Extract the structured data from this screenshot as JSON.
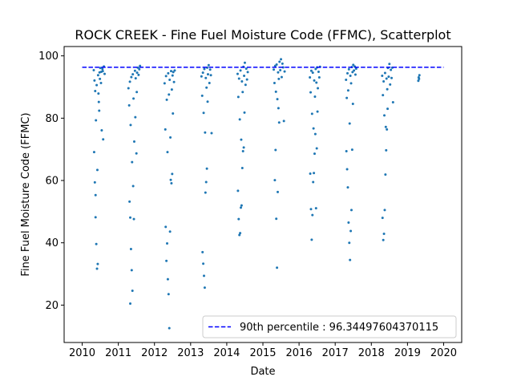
{
  "chart_data": {
    "type": "scatter",
    "title": "ROCK CREEK - Fine Fuel Moisture Code (FFMC), Scatterplot",
    "xlabel": "Date",
    "ylabel": "Fine Fuel Moisture Code (FFMC)",
    "xlim": [
      2009.5,
      2020.5
    ],
    "ylim": [
      8,
      103
    ],
    "x_ticks": [
      2010,
      2011,
      2012,
      2013,
      2014,
      2015,
      2016,
      2017,
      2018,
      2019,
      2020
    ],
    "x_tick_labels": [
      "2010",
      "2011",
      "2012",
      "2013",
      "2014",
      "2015",
      "2016",
      "2017",
      "2018",
      "2019",
      "2020"
    ],
    "y_ticks": [
      20,
      40,
      60,
      80,
      100
    ],
    "y_tick_labels": [
      "20",
      "40",
      "60",
      "80",
      "100"
    ],
    "grid": false,
    "legend_position": "lower-right",
    "series": [
      {
        "kind": "scatter",
        "color": "#1f77b4",
        "points": [
          [
            2010.32,
            95.4
          ],
          [
            2010.34,
            92.1
          ],
          [
            2010.36,
            88.7
          ],
          [
            2010.38,
            79.3
          ],
          [
            2010.4,
            90.6
          ],
          [
            2010.42,
            63.4
          ],
          [
            2010.44,
            93.8
          ],
          [
            2010.46,
            85.2
          ],
          [
            2010.48,
            94.7
          ],
          [
            2010.5,
            96.1
          ],
          [
            2010.52,
            91.3
          ],
          [
            2010.54,
            76.1
          ],
          [
            2010.56,
            95.8
          ],
          [
            2010.58,
            73.2
          ],
          [
            2010.6,
            96.6
          ],
          [
            2010.62,
            94.2
          ],
          [
            2010.33,
            69.1
          ],
          [
            2010.35,
            59.4
          ],
          [
            2010.37,
            48.2
          ],
          [
            2010.39,
            39.6
          ],
          [
            2010.41,
            31.7
          ],
          [
            2010.43,
            33.2
          ],
          [
            2010.37,
            55.3
          ],
          [
            2010.45,
            87.9
          ],
          [
            2010.47,
            82.4
          ],
          [
            2010.49,
            92.6
          ],
          [
            2010.53,
            94.9
          ],
          [
            2010.57,
            95.1
          ],
          [
            2011.28,
            89.6
          ],
          [
            2011.3,
            84.1
          ],
          [
            2011.32,
            91.7
          ],
          [
            2011.34,
            77.8
          ],
          [
            2011.36,
            93.2
          ],
          [
            2011.38,
            65.9
          ],
          [
            2011.4,
            94.1
          ],
          [
            2011.42,
            86.3
          ],
          [
            2011.44,
            72.5
          ],
          [
            2011.46,
            95.2
          ],
          [
            2011.48,
            92.8
          ],
          [
            2011.5,
            68.7
          ],
          [
            2011.52,
            94.6
          ],
          [
            2011.54,
            96.2
          ],
          [
            2011.56,
            93.9
          ],
          [
            2011.58,
            95.7
          ],
          [
            2011.6,
            96.8
          ],
          [
            2011.31,
            53.2
          ],
          [
            2011.33,
            48.1
          ],
          [
            2011.35,
            38.0
          ],
          [
            2011.37,
            31.2
          ],
          [
            2011.39,
            24.6
          ],
          [
            2011.33,
            20.5
          ],
          [
            2011.43,
            47.6
          ],
          [
            2011.41,
            58.2
          ],
          [
            2011.47,
            80.3
          ],
          [
            2011.51,
            88.4
          ],
          [
            2012.28,
            91.2
          ],
          [
            2012.3,
            76.4
          ],
          [
            2012.32,
            93.5
          ],
          [
            2012.34,
            85.9
          ],
          [
            2012.36,
            69.1
          ],
          [
            2012.38,
            94.4
          ],
          [
            2012.4,
            87.6
          ],
          [
            2012.42,
            92.3
          ],
          [
            2012.44,
            73.8
          ],
          [
            2012.46,
            95.1
          ],
          [
            2012.48,
            89.2
          ],
          [
            2012.5,
            93.7
          ],
          [
            2012.52,
            94.8
          ],
          [
            2012.54,
            91.6
          ],
          [
            2012.56,
            95.3
          ],
          [
            2012.31,
            45.1
          ],
          [
            2012.33,
            34.2
          ],
          [
            2012.35,
            39.8
          ],
          [
            2012.37,
            28.3
          ],
          [
            2012.39,
            23.5
          ],
          [
            2012.41,
            12.6
          ],
          [
            2012.43,
            43.6
          ],
          [
            2012.45,
            60.2
          ],
          [
            2012.47,
            59.1
          ],
          [
            2012.49,
            62.1
          ],
          [
            2012.51,
            81.5
          ],
          [
            2013.3,
            93.4
          ],
          [
            2013.32,
            87.2
          ],
          [
            2013.34,
            94.6
          ],
          [
            2013.36,
            81.7
          ],
          [
            2013.38,
            95.8
          ],
          [
            2013.4,
            75.4
          ],
          [
            2013.42,
            92.9
          ],
          [
            2013.44,
            89.8
          ],
          [
            2013.46,
            96.2
          ],
          [
            2013.48,
            94.1
          ],
          [
            2013.5,
            97.0
          ],
          [
            2013.52,
            91.3
          ],
          [
            2013.54,
            95.6
          ],
          [
            2013.56,
            93.8
          ],
          [
            2013.58,
            75.2
          ],
          [
            2013.33,
            37.0
          ],
          [
            2013.35,
            33.3
          ],
          [
            2013.37,
            29.4
          ],
          [
            2013.39,
            25.6
          ],
          [
            2013.41,
            56.1
          ],
          [
            2013.43,
            59.5
          ],
          [
            2013.45,
            63.8
          ],
          [
            2013.47,
            85.3
          ],
          [
            2014.3,
            94.2
          ],
          [
            2014.32,
            86.8
          ],
          [
            2014.34,
            92.7
          ],
          [
            2014.36,
            79.6
          ],
          [
            2014.38,
            95.3
          ],
          [
            2014.4,
            73.1
          ],
          [
            2014.42,
            91.8
          ],
          [
            2014.44,
            88.4
          ],
          [
            2014.46,
            96.5
          ],
          [
            2014.48,
            93.6
          ],
          [
            2014.5,
            97.8
          ],
          [
            2014.52,
            90.7
          ],
          [
            2014.54,
            95.9
          ],
          [
            2014.56,
            92.4
          ],
          [
            2014.58,
            94.8
          ],
          [
            2014.31,
            56.7
          ],
          [
            2014.33,
            47.6
          ],
          [
            2014.35,
            42.5
          ],
          [
            2014.37,
            43.1
          ],
          [
            2014.39,
            51.3
          ],
          [
            2014.41,
            52.0
          ],
          [
            2014.43,
            64.0
          ],
          [
            2014.45,
            69.4
          ],
          [
            2014.47,
            70.6
          ],
          [
            2014.49,
            81.8
          ],
          [
            2015.3,
            95.6
          ],
          [
            2015.32,
            91.3
          ],
          [
            2015.34,
            96.8
          ],
          [
            2015.36,
            88.5
          ],
          [
            2015.38,
            97.2
          ],
          [
            2015.4,
            86.1
          ],
          [
            2015.42,
            94.7
          ],
          [
            2015.44,
            92.6
          ],
          [
            2015.46,
            98.1
          ],
          [
            2015.48,
            95.4
          ],
          [
            2015.5,
            98.9
          ],
          [
            2015.52,
            93.2
          ],
          [
            2015.54,
            97.5
          ],
          [
            2015.56,
            96.3
          ],
          [
            2015.58,
            79.1
          ],
          [
            2015.6,
            95.0
          ],
          [
            2015.33,
            60.1
          ],
          [
            2015.35,
            69.8
          ],
          [
            2015.37,
            47.7
          ],
          [
            2015.39,
            32.0
          ],
          [
            2015.41,
            56.3
          ],
          [
            2015.43,
            83.2
          ],
          [
            2015.45,
            78.6
          ],
          [
            2016.3,
            93.1
          ],
          [
            2016.32,
            88.3
          ],
          [
            2016.34,
            95.2
          ],
          [
            2016.36,
            81.4
          ],
          [
            2016.38,
            94.6
          ],
          [
            2016.4,
            76.7
          ],
          [
            2016.42,
            92.1
          ],
          [
            2016.44,
            86.9
          ],
          [
            2016.46,
            95.8
          ],
          [
            2016.48,
            91.4
          ],
          [
            2016.5,
            96.3
          ],
          [
            2016.52,
            89.6
          ],
          [
            2016.54,
            94.9
          ],
          [
            2016.56,
            93.1
          ],
          [
            2016.58,
            96.5
          ],
          [
            2016.31,
            62.2
          ],
          [
            2016.33,
            50.8
          ],
          [
            2016.35,
            41.0
          ],
          [
            2016.37,
            48.9
          ],
          [
            2016.39,
            59.5
          ],
          [
            2016.41,
            62.4
          ],
          [
            2016.43,
            68.6
          ],
          [
            2016.45,
            74.9
          ],
          [
            2016.47,
            51.1
          ],
          [
            2016.49,
            70.3
          ],
          [
            2016.51,
            82.1
          ],
          [
            2017.3,
            92.3
          ],
          [
            2017.32,
            86.5
          ],
          [
            2017.34,
            94.4
          ],
          [
            2017.36,
            88.9
          ],
          [
            2017.38,
            95.7
          ],
          [
            2017.4,
            78.3
          ],
          [
            2017.42,
            93.6
          ],
          [
            2017.44,
            91.2
          ],
          [
            2017.46,
            96.4
          ],
          [
            2017.48,
            94.8
          ],
          [
            2017.5,
            97.1
          ],
          [
            2017.52,
            95.3
          ],
          [
            2017.54,
            96.6
          ],
          [
            2017.56,
            94.0
          ],
          [
            2017.58,
            95.9
          ],
          [
            2017.31,
            69.4
          ],
          [
            2017.33,
            63.6
          ],
          [
            2017.35,
            57.8
          ],
          [
            2017.37,
            46.5
          ],
          [
            2017.39,
            40.0
          ],
          [
            2017.41,
            34.5
          ],
          [
            2017.43,
            43.8
          ],
          [
            2017.45,
            50.5
          ],
          [
            2017.47,
            69.9
          ],
          [
            2017.49,
            84.6
          ],
          [
            2018.3,
            93.6
          ],
          [
            2018.32,
            87.4
          ],
          [
            2018.34,
            91.8
          ],
          [
            2018.36,
            80.9
          ],
          [
            2018.38,
            94.5
          ],
          [
            2018.4,
            77.2
          ],
          [
            2018.42,
            92.7
          ],
          [
            2018.44,
            89.3
          ],
          [
            2018.46,
            96.1
          ],
          [
            2018.48,
            93.3
          ],
          [
            2018.5,
            97.4
          ],
          [
            2018.52,
            90.8
          ],
          [
            2018.54,
            95.5
          ],
          [
            2018.56,
            92.9
          ],
          [
            2018.58,
            96.2
          ],
          [
            2018.6,
            85.1
          ],
          [
            2018.31,
            48.0
          ],
          [
            2018.33,
            40.9
          ],
          [
            2018.35,
            42.9
          ],
          [
            2018.37,
            50.5
          ],
          [
            2018.39,
            61.9
          ],
          [
            2018.41,
            69.7
          ],
          [
            2018.43,
            76.4
          ],
          [
            2018.45,
            83.0
          ],
          [
            2019.3,
            92.0
          ],
          [
            2019.31,
            93.1
          ],
          [
            2019.32,
            92.6
          ],
          [
            2019.33,
            93.8
          ]
        ]
      },
      {
        "kind": "hline",
        "name": "90th percentile : 96.34497604370115",
        "y": 96.34497604370115,
        "x_range": [
          2010.0,
          2020.0
        ],
        "color": "#0000ff",
        "dash": "dashed"
      }
    ]
  }
}
